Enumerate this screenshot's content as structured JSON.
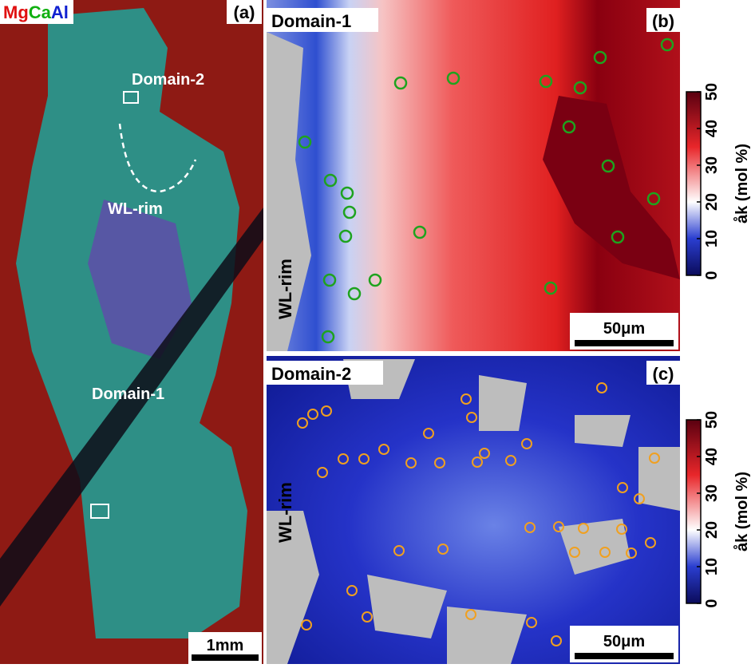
{
  "panel_a": {
    "legend": {
      "mg": "Mg",
      "ca": "Ca",
      "al": "Al"
    },
    "label": "(a)",
    "domain2": "Domain-2",
    "wl_rim": "WL-rim",
    "domain1": "Domain-1",
    "scale_bar": "1mm"
  },
  "panel_b": {
    "title": "Domain-1",
    "label": "(b)",
    "wl_rim": "WL-rim",
    "scale_bar": "50μm",
    "colorbar": {
      "label": "åk (mol %)",
      "lim": [
        0,
        50
      ],
      "ticks": [
        0,
        10,
        20,
        30,
        40,
        50
      ]
    }
  },
  "panel_c": {
    "title": "Domain-2",
    "label": "(c)",
    "wl_rim": "WL-rim",
    "scale_bar": "50μm",
    "colorbar": {
      "label": "åk (mol %)",
      "lim": [
        0,
        50
      ],
      "ticks": [
        0,
        10,
        20,
        30,
        40,
        50
      ]
    }
  }
}
